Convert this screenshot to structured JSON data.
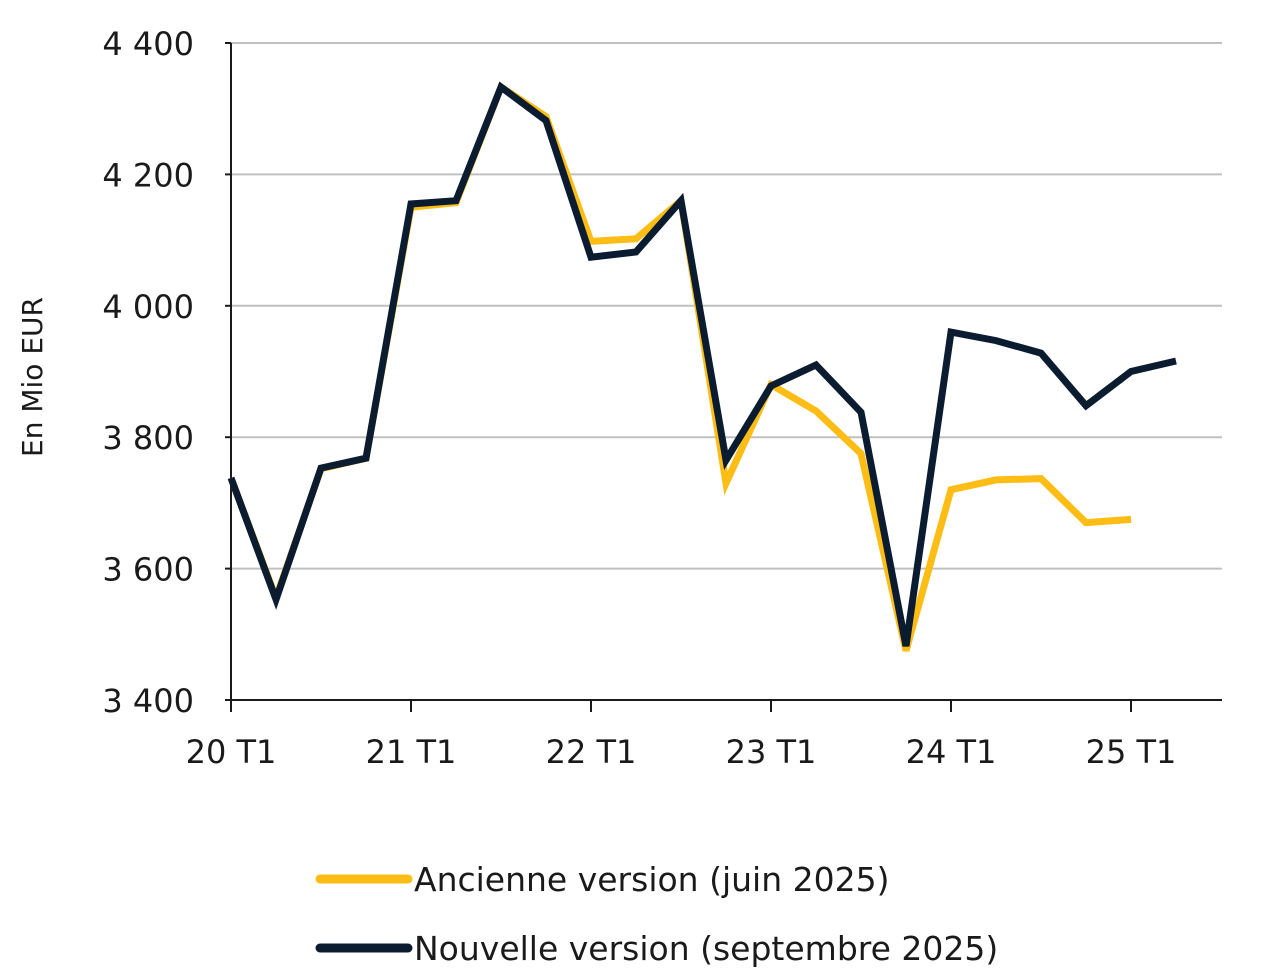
{
  "chart_data": {
    "type": "line",
    "ylabel": "En Mio EUR",
    "ylim": [
      3400,
      4400
    ],
    "yticks": [
      3400,
      3600,
      3800,
      4000,
      4200,
      4400
    ],
    "ytick_labels": [
      "3 400",
      "3 600",
      "3 800",
      "4 000",
      "4 200",
      "4 400"
    ],
    "xticks": [
      0,
      4,
      8,
      12,
      16,
      20
    ],
    "xtick_labels": [
      "20 T1",
      "21 T1",
      "22 T1",
      "23 T1",
      "24 T1",
      "25 T1"
    ],
    "x_range": [
      0,
      22
    ],
    "grid": "horizontal",
    "legend_position": "bottom",
    "x": [
      "20 T1",
      "20 T2",
      "20 T3",
      "20 T4",
      "21 T1",
      "21 T2",
      "21 T3",
      "21 T4",
      "22 T1",
      "22 T2",
      "22 T3",
      "22 T4",
      "23 T1",
      "23 T2",
      "23 T3",
      "23 T4",
      "24 T1",
      "24 T2",
      "24 T3",
      "24 T4",
      "25 T1",
      "25 T2"
    ],
    "series": [
      {
        "name": "Ancienne version (juin 2025)",
        "color": "#FDBD14",
        "values": [
          3738,
          3555,
          3752,
          3768,
          4150,
          4157,
          4333,
          4288,
          4098,
          4102,
          4160,
          3730,
          3880,
          3840,
          3775,
          3475,
          3720,
          3735,
          3737,
          3670,
          3675,
          null
        ]
      },
      {
        "name": "Nouvelle version (septembre 2025)",
        "color": "#0C1C30",
        "values": [
          3738,
          3553,
          3753,
          3768,
          4155,
          4160,
          4333,
          4282,
          4074,
          4082,
          4160,
          3765,
          3878,
          3910,
          3838,
          3482,
          3960,
          3947,
          3928,
          3848,
          3900,
          3916
        ]
      }
    ]
  }
}
